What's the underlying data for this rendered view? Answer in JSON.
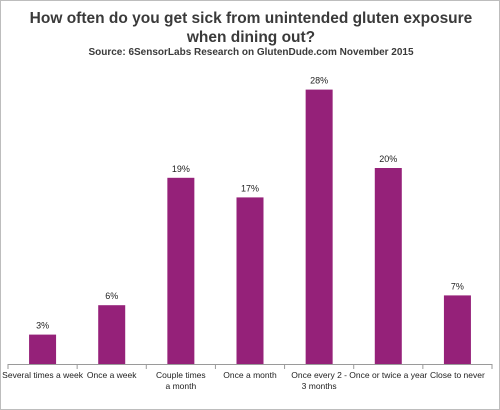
{
  "chart_data": {
    "type": "bar",
    "title": "How often do you get sick from unintended gluten exposure when dining out?",
    "subtitle": "Source: 6SensorLabs Research on GlutenDude.com November 2015",
    "categories": [
      "Several times a week",
      "Once a week",
      "Couple times a month",
      "Once a month",
      "Once every 2 - 3 months",
      "Once or twice a year",
      "Close to never"
    ],
    "values": [
      3,
      6,
      19,
      17,
      28,
      20,
      7
    ],
    "value_labels": [
      "3%",
      "6%",
      "19%",
      "17%",
      "28%",
      "20%",
      "7%"
    ],
    "ylim": [
      0,
      30
    ],
    "grid": false,
    "legend": "none",
    "bar_color": "#952179"
  }
}
